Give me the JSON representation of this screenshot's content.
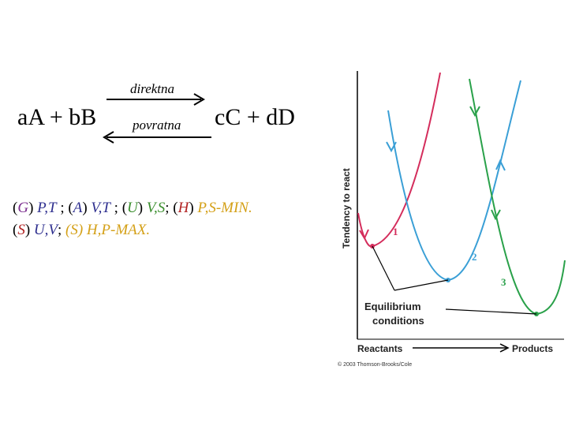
{
  "equation": {
    "reactants": "aA + bB",
    "products": "cC + dD",
    "forward_label": "direktna",
    "reverse_label": "povratna"
  },
  "thermo_lines": [
    [
      {
        "text": "(",
        "color": "#000000",
        "italic": false
      },
      {
        "text": "G",
        "color": "#7b2d8e",
        "italic": true
      },
      {
        "text": ")",
        "color": "#000000",
        "italic": false
      },
      {
        "text": " P,T",
        "color": "#2e2f8f",
        "italic": true
      },
      {
        "text": " ; ",
        "color": "#000000",
        "italic": false
      },
      {
        "text": "(",
        "color": "#000000",
        "italic": false
      },
      {
        "text": "A",
        "color": "#2e2f8f",
        "italic": true
      },
      {
        "text": ")",
        "color": "#000000",
        "italic": false
      },
      {
        "text": " V,T",
        "color": "#2e2f8f",
        "italic": true
      },
      {
        "text": " ; ",
        "color": "#000000",
        "italic": false
      },
      {
        "text": "(",
        "color": "#000000",
        "italic": false
      },
      {
        "text": "U",
        "color": "#3b8f2e",
        "italic": true
      },
      {
        "text": ")",
        "color": "#000000",
        "italic": false
      },
      {
        "text": " V,S",
        "color": "#3b8f2e",
        "italic": true
      },
      {
        "text": "; ",
        "color": "#000000",
        "italic": false
      },
      {
        "text": "(",
        "color": "#000000",
        "italic": false
      },
      {
        "text": "H",
        "color": "#b22222",
        "italic": true
      },
      {
        "text": ")",
        "color": "#000000",
        "italic": false
      },
      {
        "text": " P,S-MIN.",
        "color": "#d4a017",
        "italic": true
      }
    ],
    [
      {
        "text": "(",
        "color": "#000000",
        "italic": false
      },
      {
        "text": "S",
        "color": "#b22222",
        "italic": true
      },
      {
        "text": ")",
        "color": "#000000",
        "italic": false
      },
      {
        "text": " U,V",
        "color": "#2e2f8f",
        "italic": true
      },
      {
        "text": "; ",
        "color": "#000000",
        "italic": false
      },
      {
        "text": "(S) H,P-MAX.",
        "color": "#d4a017",
        "italic": true
      }
    ]
  ],
  "plot": {
    "y_label": "Tendency to react",
    "x_label_left": "Reactants",
    "x_label_right": "Products",
    "curve_labels": [
      "1",
      "2",
      "3"
    ],
    "annotation_line1": "Equilibrium",
    "annotation_line2": "conditions",
    "copyright": "© 2003 Thomson-Brooks/Cole",
    "colors": {
      "curve1": "#d42d5c",
      "curve2": "#3a9fd6",
      "curve3": "#2aa14a"
    }
  }
}
